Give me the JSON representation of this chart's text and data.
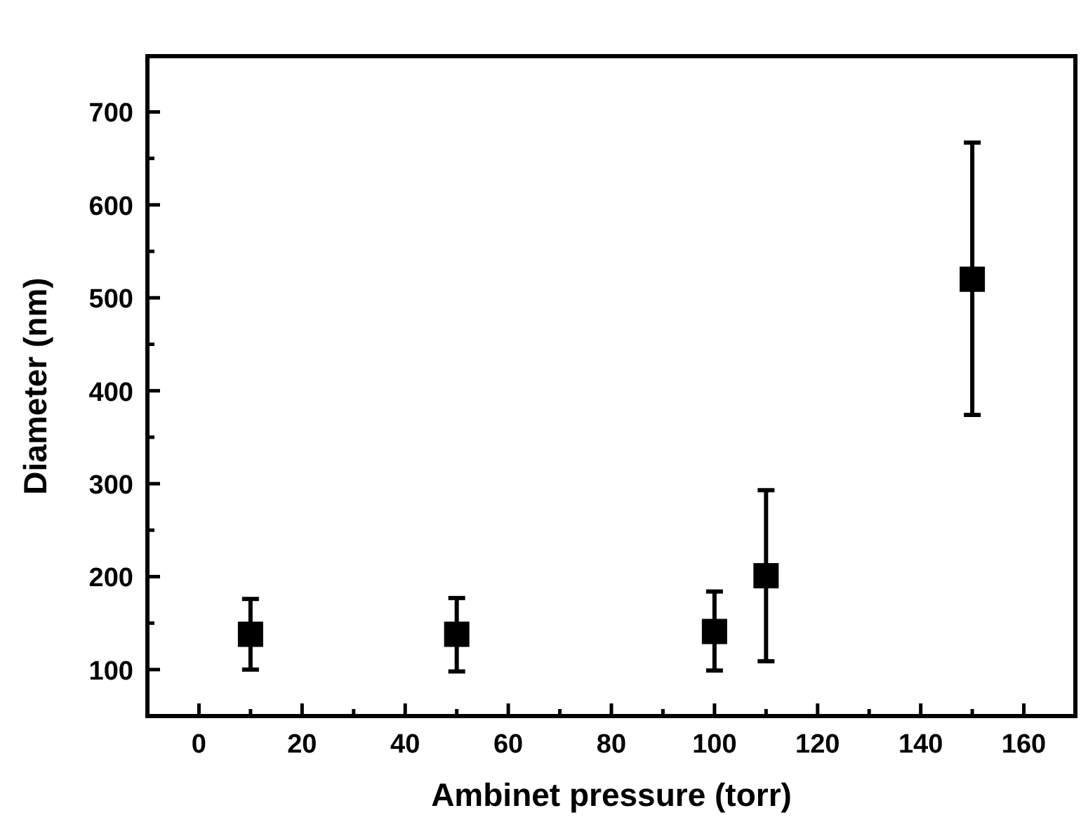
{
  "chart_data": {
    "type": "scatter",
    "xlabel": "Ambinet pressure (torr)",
    "ylabel": "Diameter (nm)",
    "x": [
      10,
      50,
      100,
      110,
      150
    ],
    "series": [
      {
        "color": "#000000",
        "values": [
          138,
          138,
          141,
          201,
          520
        ],
        "errors": [
          [
            100,
            176
          ],
          [
            98,
            177
          ],
          [
            99,
            184
          ],
          [
            109,
            293
          ],
          [
            374,
            667
          ]
        ]
      }
    ],
    "marker": "square",
    "grid": false,
    "xlim": [
      -10,
      170
    ],
    "xticks": [
      0,
      {
        "value": 10,
        "label": null
      },
      20,
      {
        "value": 30,
        "label": null
      },
      40,
      {
        "value": 50,
        "label": null
      },
      60,
      {
        "value": 70,
        "label": null
      },
      80,
      {
        "value": 90,
        "label": null
      },
      100,
      {
        "value": 110,
        "label": null
      },
      120,
      {
        "value": 130,
        "label": null
      },
      140,
      {
        "value": 150,
        "label": null
      },
      160
    ],
    "ylim": [
      50,
      760
    ],
    "yticks": [
      100,
      {
        "value": 150,
        "label": null
      },
      200,
      {
        "value": 250,
        "label": null
      },
      300,
      {
        "value": 350,
        "label": null
      },
      400,
      {
        "value": 450,
        "label": null
      },
      500,
      {
        "value": 550,
        "label": null
      },
      600,
      {
        "value": 650,
        "label": null
      },
      700
    ]
  }
}
